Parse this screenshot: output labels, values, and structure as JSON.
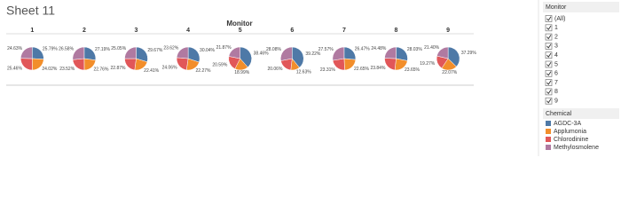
{
  "title": "Sheet 11",
  "chart_data": {
    "type": "pie",
    "column_header": "Monitor",
    "categories": [
      "1",
      "2",
      "3",
      "4",
      "5",
      "6",
      "7",
      "8",
      "9"
    ],
    "legend_title": "Chemical",
    "series": [
      {
        "name": "AGDC-3A",
        "color": "#4e79a7",
        "values": [
          25.79,
          27.19,
          29.67,
          30.04,
          38.46,
          39.22,
          26.47,
          28.03,
          37.29
        ],
        "value_labels": [
          "25.79%",
          "27.19%",
          "29.67%",
          "30.04%",
          "38.46%",
          "39.22%",
          "26.47%",
          "28.03%",
          "37.29%"
        ]
      },
      {
        "name": "Applumonia",
        "color": "#f28e2b",
        "values": [
          24.02,
          22.76,
          22.41,
          22.27,
          18.99,
          12.63,
          22.65,
          23.65,
          22.07
        ],
        "value_labels": [
          "24.02%",
          "22.76%",
          "22.41%",
          "22.27%",
          "18.99%",
          "12.63%",
          "22.65%",
          "23.65%",
          "22.07%"
        ]
      },
      {
        "name": "Chlorodinine",
        "color": "#e15759",
        "values": [
          25.46,
          23.52,
          22.87,
          24.06,
          20.59,
          20.06,
          23.31,
          23.84,
          19.27
        ],
        "value_labels": [
          "25.46%",
          "23.52%",
          "22.87%",
          "24.06%",
          "20.59%",
          "20.06%",
          "23.31%",
          "23.84%",
          "19.27%"
        ]
      },
      {
        "name": "Methylosmolene",
        "color": "#b07aa1",
        "values": [
          24.63,
          26.58,
          25.05,
          23.62,
          21.87,
          28.08,
          27.57,
          24.48,
          21.4
        ],
        "value_labels": [
          "24.63%",
          "26.58%",
          "25.05%",
          "23.62%",
          "21.87%",
          "28.08%",
          "27.57%",
          "24.48%",
          "21.40%"
        ]
      }
    ]
  },
  "filter": {
    "title": "Monitor",
    "items": [
      "(All)",
      "1",
      "2",
      "3",
      "4",
      "5",
      "6",
      "7",
      "8",
      "9"
    ]
  }
}
